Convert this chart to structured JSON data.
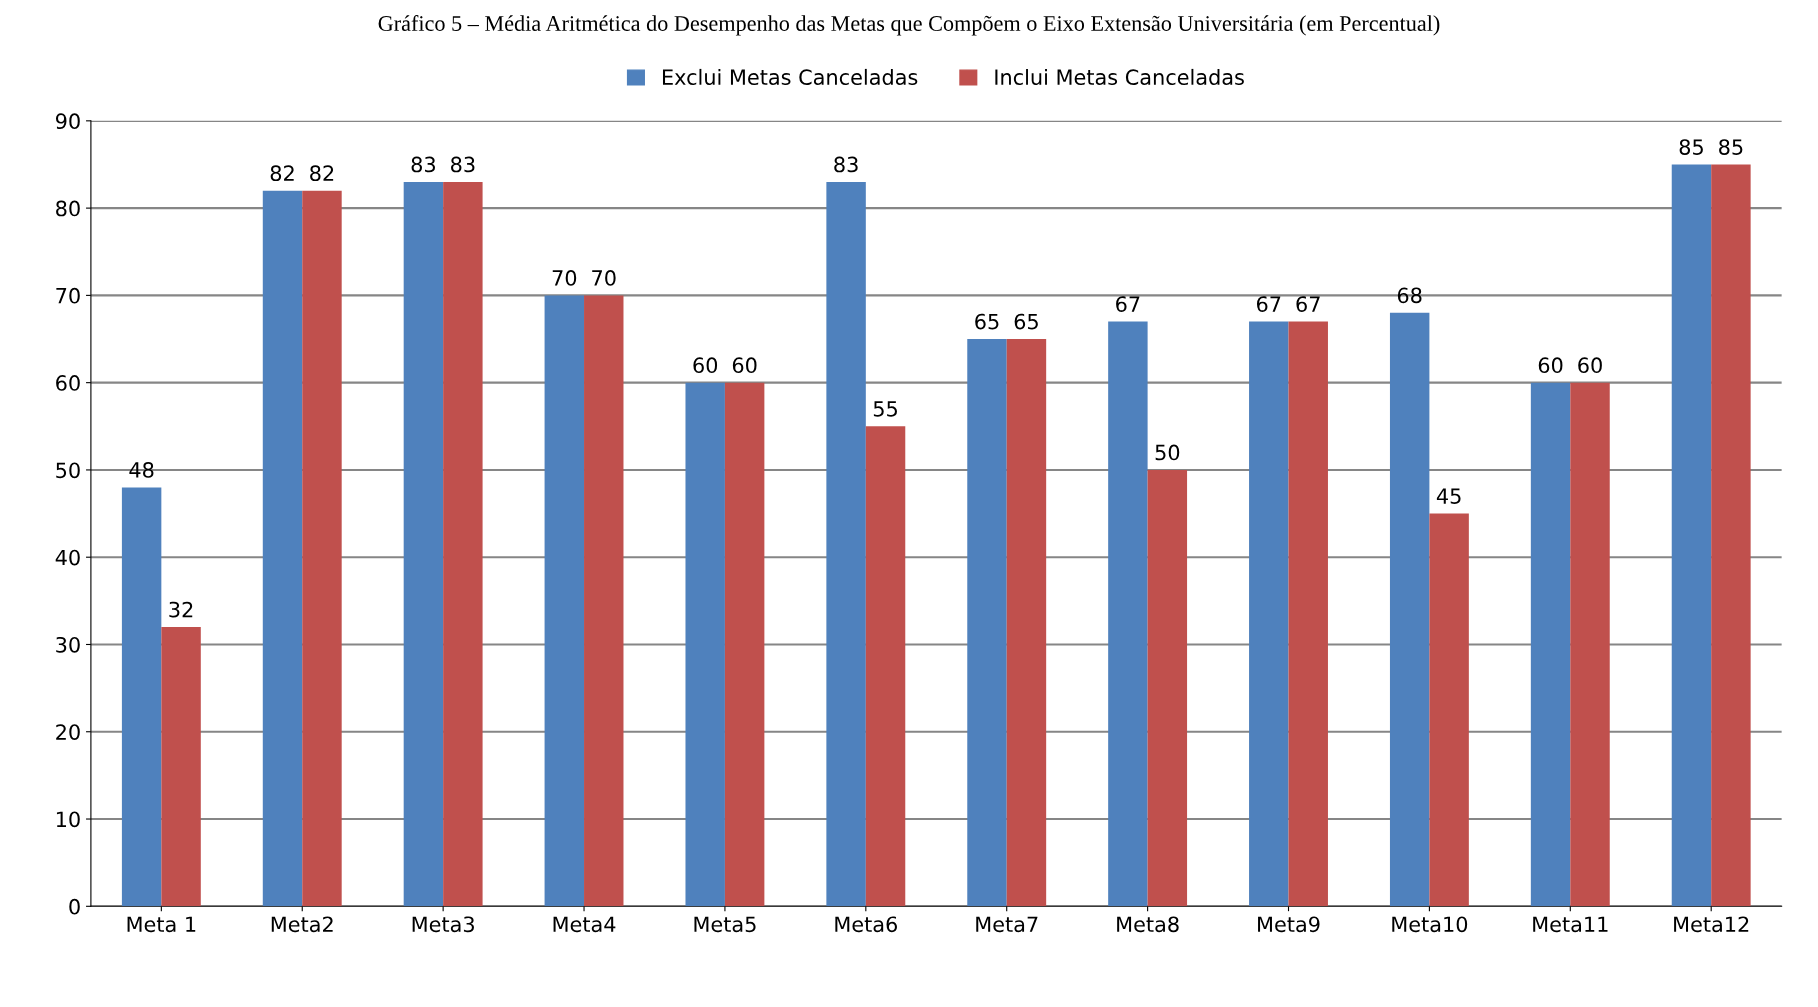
{
  "chart_data": {
    "type": "bar",
    "title": "Gráfico 5 – Média Aritmética do Desempenho das Metas que Compõem o Eixo Extensão Universitária (em Percentual)",
    "categories": [
      "Meta 1",
      "Meta2",
      "Meta3",
      "Meta4",
      "Meta5",
      "Meta6",
      "Meta7",
      "Meta8",
      "Meta9",
      "Meta10",
      "Meta11",
      "Meta12"
    ],
    "series": [
      {
        "name": "Exclui Metas Canceladas",
        "color": "#4f81bd",
        "values": [
          48,
          82,
          83,
          70,
          60,
          83,
          65,
          67,
          67,
          68,
          60,
          85
        ]
      },
      {
        "name": "Inclui Metas Canceladas",
        "color": "#c0504d",
        "values": [
          32,
          82,
          83,
          70,
          60,
          55,
          65,
          50,
          67,
          45,
          60,
          85
        ]
      }
    ],
    "ylim": [
      0,
      90
    ],
    "yticks": [
      0,
      10,
      20,
      30,
      40,
      50,
      60,
      70,
      80,
      90
    ],
    "grid": "y",
    "legend": "top",
    "data_labels": true
  }
}
